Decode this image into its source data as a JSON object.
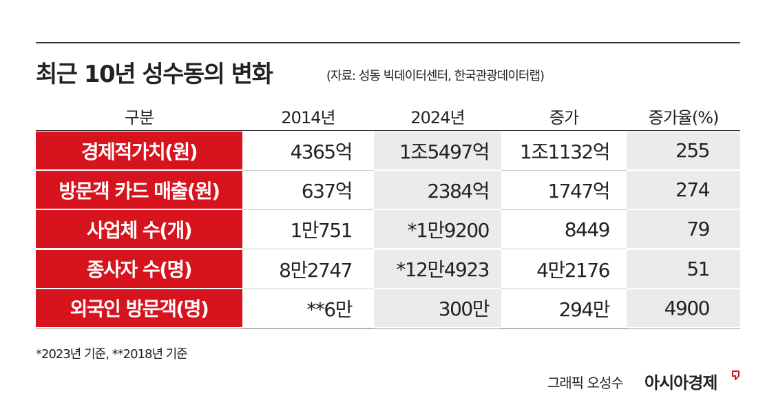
{
  "header": {
    "title": "최근 10년 성수동의 변화",
    "source": "(자료: 성동 빅데이터센터, 한국관광데이터랩)"
  },
  "table": {
    "columns": [
      "구분",
      "2014년",
      "2024년",
      "증가",
      "증가율(%)"
    ],
    "rows": [
      [
        "경제적가치(원)",
        "4365억",
        "1조5497억",
        "1조1132억",
        "255"
      ],
      [
        "방문객 카드 매출(원)",
        "637억",
        "2384억",
        "1747억",
        "274"
      ],
      [
        "사업체 수(개)",
        "1만751",
        "*1만9200",
        "8449",
        "79"
      ],
      [
        "종사자 수(명)",
        "8만2747",
        "*12만4923",
        "4만2176",
        "51"
      ],
      [
        "외국인 방문객(명)",
        "**6만",
        "300만",
        "294만",
        "4900"
      ]
    ]
  },
  "footnote": "*2023년 기준, **2018년 기준",
  "credit": {
    "graphic": "그래픽 오성수",
    "brand": "아시아경제"
  }
}
